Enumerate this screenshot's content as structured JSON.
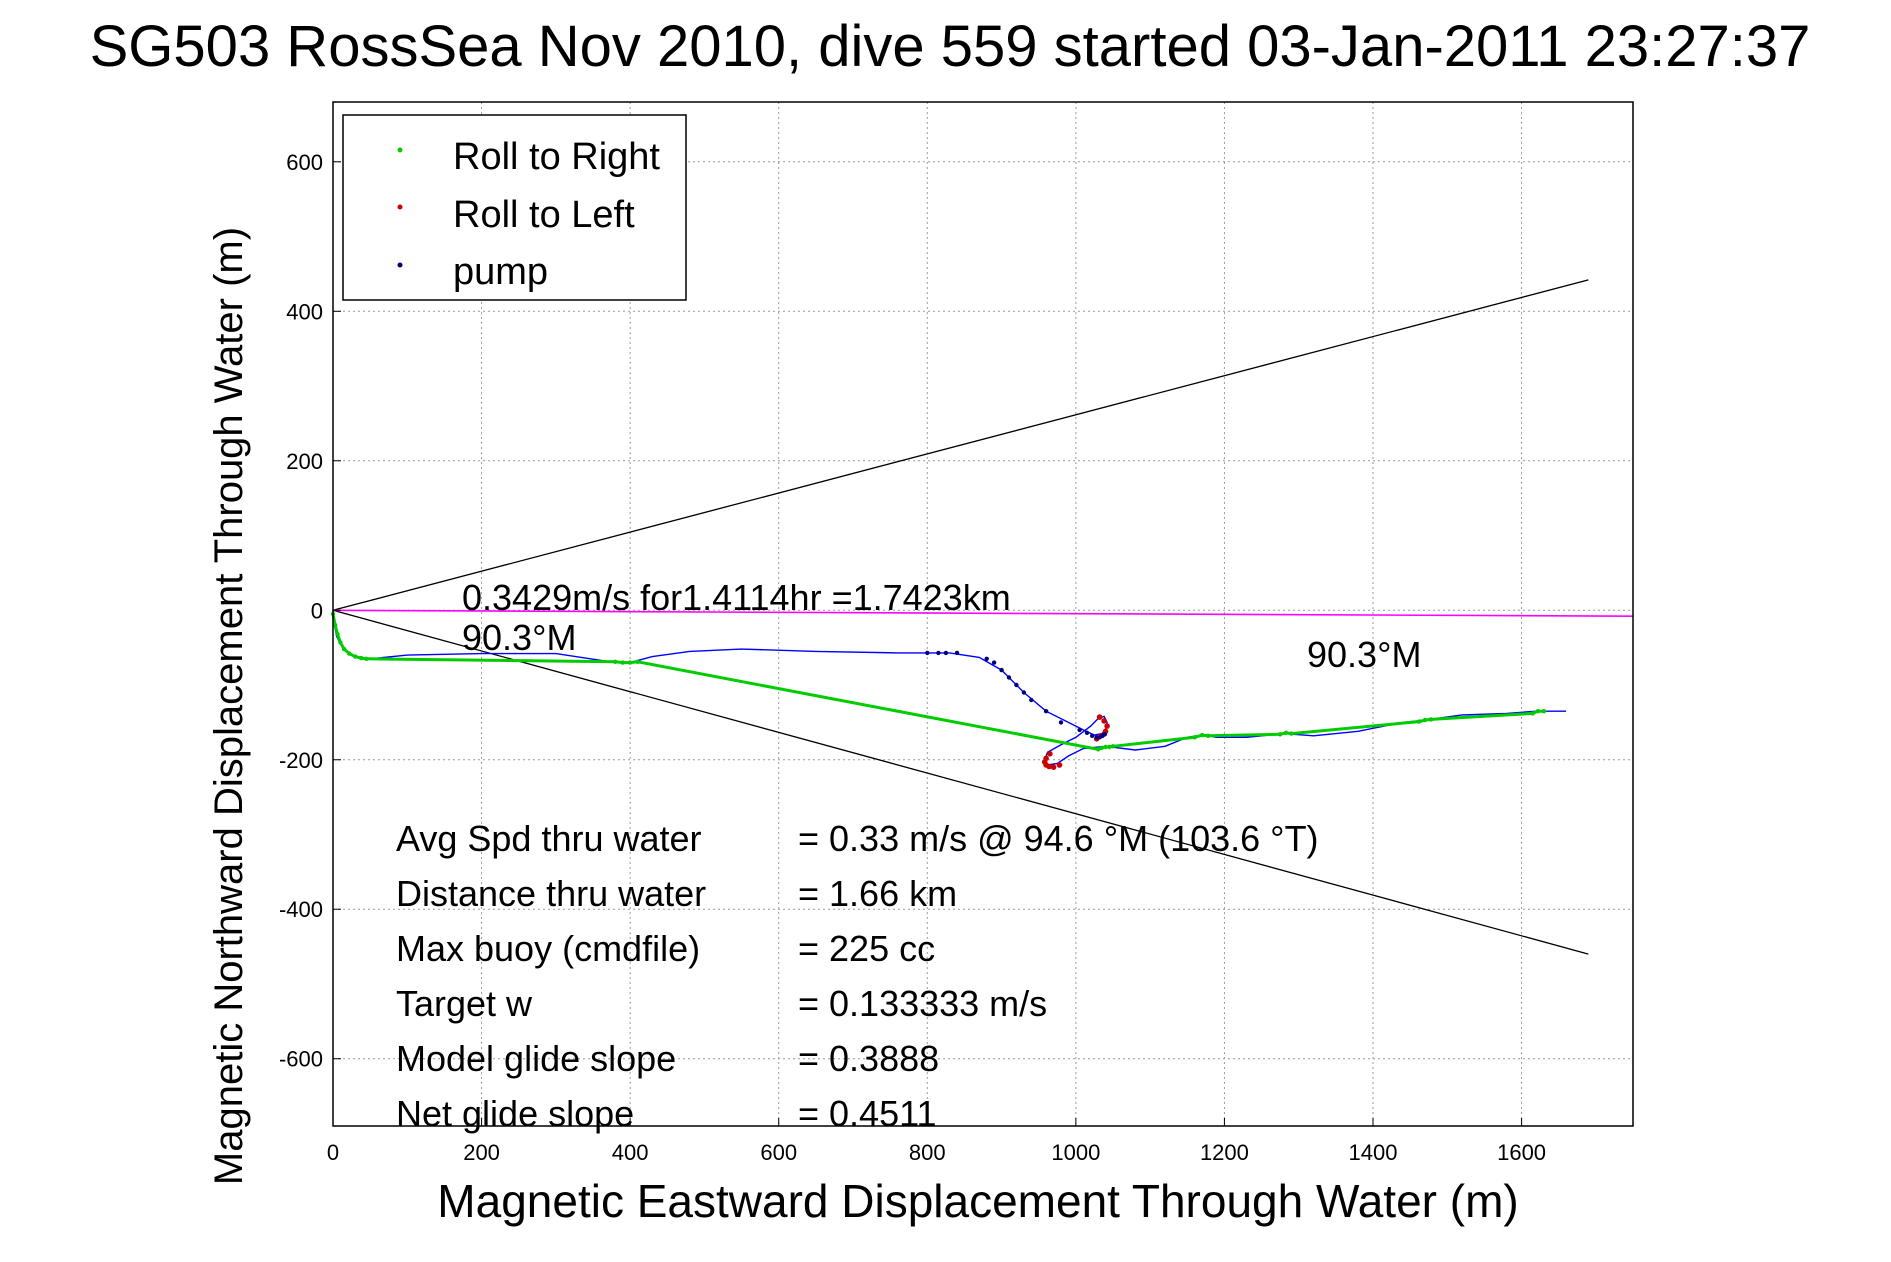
{
  "chart_data": {
    "type": "line",
    "title": "SG503 RossSea Nov 2010, dive 559 started 03-Jan-2011 23:27:37",
    "xlabel": "Magnetic Eastward Displacement Through Water (m)",
    "ylabel": "Magnetic Northward Displacement Through Water (m)",
    "xlim": [
      0,
      1750
    ],
    "ylim": [
      -690,
      680
    ],
    "x_ticks": [
      0,
      200,
      400,
      600,
      800,
      1000,
      1200,
      1400,
      1600
    ],
    "y_ticks": [
      -600,
      -400,
      -200,
      0,
      200,
      400,
      600
    ],
    "grid": true,
    "legend_position": "top-left",
    "legend": [
      {
        "label": "Roll to Right",
        "color": "#00cc00"
      },
      {
        "label": "Roll to Left",
        "color": "#cc0000"
      },
      {
        "label": "pump",
        "color": "#000080"
      }
    ],
    "annotations": {
      "current_text": "0.3429m/s for1.4114hr =1.7423km",
      "heading_left": "90.3°M",
      "heading_right": "90.3°M"
    },
    "stats": [
      {
        "label": "Avg Spd thru water",
        "value": "=  0.33 m/s @  94.6 °M (103.6 °T)"
      },
      {
        "label": "Distance thru water",
        "value": "=  1.66 km"
      },
      {
        "label": "Max buoy (cmdfile)",
        "value": "= 225 cc"
      },
      {
        "label": "Target w",
        "value": "= 0.133333 m/s"
      },
      {
        "label": "Model glide slope",
        "value": "= 0.3888"
      },
      {
        "label": "Net glide slope",
        "value": "= 0.4511"
      }
    ],
    "series": [
      {
        "name": "track",
        "color": "#0000ff",
        "x": [
          0,
          2,
          5,
          10,
          18,
          30,
          45,
          60,
          100,
          200,
          300,
          380,
          400,
          430,
          480,
          550,
          650,
          760,
          800,
          830,
          870,
          900,
          930,
          960,
          990,
          1010,
          1025,
          1035,
          1040,
          1042,
          1038,
          1030,
          1020,
          1000,
          980,
          962,
          958,
          962,
          975,
          990,
          1010,
          1040,
          1080,
          1120,
          1150,
          1170,
          1190,
          1230,
          1280,
          1320,
          1380,
          1440,
          1470,
          1520,
          1580,
          1620,
          1660
        ],
        "y": [
          0,
          -20,
          -35,
          -45,
          -55,
          -62,
          -65,
          -64,
          -60,
          -58,
          -58,
          -70,
          -70,
          -62,
          -55,
          -52,
          -55,
          -57,
          -57,
          -57,
          -63,
          -80,
          -110,
          -135,
          -150,
          -160,
          -167,
          -165,
          -160,
          -150,
          -142,
          -145,
          -155,
          -170,
          -180,
          -190,
          -200,
          -207,
          -205,
          -195,
          -185,
          -182,
          -187,
          -182,
          -170,
          -167,
          -170,
          -170,
          -165,
          -168,
          -162,
          -150,
          -147,
          -140,
          -138,
          -135,
          -135
        ]
      },
      {
        "name": "Roll to Right",
        "color": "#00cc00",
        "x": [
          0,
          3,
          6,
          10,
          15,
          22,
          30,
          38,
          45,
          380,
          390,
          400,
          410,
          1030,
          1035,
          1040,
          1045,
          1050,
          1160,
          1170,
          1178,
          1275,
          1283,
          1290,
          1462,
          1470,
          1478,
          1615,
          1622,
          1630
        ],
        "y": [
          -5,
          -20,
          -32,
          -43,
          -52,
          -58,
          -62,
          -64,
          -65,
          -69,
          -70,
          -70,
          -69,
          -186,
          -184,
          -183,
          -183,
          -182,
          -170,
          -167,
          -168,
          -166,
          -164,
          -165,
          -149,
          -147,
          -146,
          -138,
          -135,
          -135
        ]
      },
      {
        "name": "Roll to Left",
        "color": "#cc0000",
        "x": [
          1032,
          1038,
          1042,
          1040,
          1034,
          1028,
          965,
          960,
          958,
          960,
          964,
          970,
          978
        ],
        "y": [
          -143,
          -148,
          -155,
          -162,
          -168,
          -172,
          -192,
          -198,
          -203,
          -207,
          -209,
          -210,
          -207
        ],
        "scatter": true
      },
      {
        "name": "pump",
        "color": "#000080",
        "x": [
          800,
          815,
          825,
          840,
          880,
          890,
          900,
          910,
          920,
          930,
          940,
          960,
          980,
          1005,
          1015,
          1022,
          1028,
          1032,
          1036,
          1039
        ],
        "y": [
          -57,
          -57,
          -57,
          -57,
          -65,
          -70,
          -80,
          -90,
          -100,
          -110,
          -120,
          -135,
          -150,
          -160,
          -164,
          -168,
          -170,
          -170,
          -168,
          -166
        ],
        "scatter": true
      },
      {
        "name": "current",
        "color": "#ff00ff",
        "x": [
          0,
          1750
        ],
        "y": [
          0,
          -8
        ]
      },
      {
        "name": "cone-upper",
        "color": "#000000",
        "x": [
          0,
          1690
        ],
        "y": [
          0,
          442
        ]
      },
      {
        "name": "cone-lower",
        "color": "#000000",
        "x": [
          0,
          1690
        ],
        "y": [
          0,
          -460
        ]
      }
    ]
  }
}
